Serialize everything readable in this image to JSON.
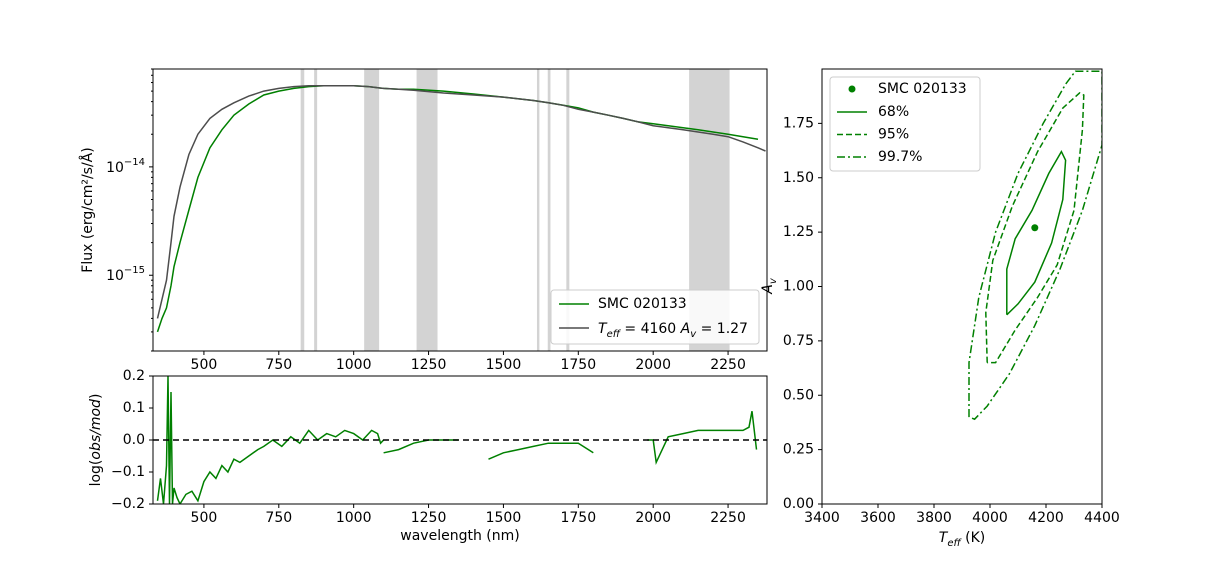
{
  "chart_data": [
    {
      "type": "line",
      "panel": "spectrum",
      "title": "",
      "xlabel": "",
      "ylabel": "Flux (erg/cm²/s/Å)",
      "xlim": [
        330,
        2380
      ],
      "ylim": [
        2e-16,
        8e-14
      ],
      "yscale": "log",
      "xticks": [
        500,
        750,
        1000,
        1250,
        1500,
        1750,
        2000,
        2250
      ],
      "yticks": [
        {
          "value": 1e-15,
          "base": "10",
          "exp": "−15"
        },
        {
          "value": 1e-14,
          "base": "10",
          "exp": "−14"
        }
      ],
      "grid": false,
      "legend_placement": "lower right",
      "masked_bands": [
        [
          823,
          835
        ],
        [
          868,
          878
        ],
        [
          1035,
          1085
        ],
        [
          1210,
          1280
        ],
        [
          1612,
          1620
        ],
        [
          1648,
          1657
        ],
        [
          1710,
          1720
        ],
        [
          2120,
          2255
        ]
      ],
      "series": [
        {
          "name": "SMC 020133",
          "color": "#008000",
          "x": [
            345,
            360,
            375,
            390,
            400,
            420,
            450,
            480,
            520,
            560,
            600,
            650,
            700,
            750,
            800,
            850,
            900,
            950,
            1000,
            1050,
            1100,
            1150,
            1200,
            1300,
            1400,
            1500,
            1600,
            1650,
            1700,
            1750,
            1800,
            1850,
            1900,
            1950,
            2000,
            2050,
            2100,
            2150,
            2200,
            2250,
            2300,
            2350
          ],
          "y": [
            3e-16,
            4e-16,
            5e-16,
            8e-16,
            1.2e-15,
            2e-15,
            4e-15,
            8e-15,
            1.5e-14,
            2.2e-14,
            3e-14,
            3.8e-14,
            4.6e-14,
            5e-14,
            5.3e-14,
            5.5e-14,
            5.6e-14,
            5.6e-14,
            5.6e-14,
            5.5e-14,
            5.3e-14,
            5.2e-14,
            5.2e-14,
            5e-14,
            4.7e-14,
            4.4e-14,
            4.1e-14,
            3.9e-14,
            3.7e-14,
            3.5e-14,
            3.2e-14,
            3e-14,
            2.8e-14,
            2.6e-14,
            2.5e-14,
            2.4e-14,
            2.3e-14,
            2.2e-14,
            2.1e-14,
            2e-14,
            1.9e-14,
            1.8e-14
          ]
        },
        {
          "name": "Teff = 4160 Av = 1.27",
          "color": "#4d4d4d",
          "x": [
            345,
            360,
            375,
            390,
            400,
            420,
            450,
            480,
            520,
            560,
            600,
            650,
            700,
            750,
            800,
            850,
            900,
            950,
            1000,
            1050,
            1100,
            1150,
            1200,
            1300,
            1400,
            1500,
            1600,
            1650,
            1700,
            1750,
            1800,
            1850,
            1900,
            1950,
            2000,
            2050,
            2100,
            2150,
            2200,
            2250,
            2300,
            2350,
            2375
          ],
          "y": [
            4e-16,
            6e-16,
            9e-16,
            2e-15,
            3.5e-15,
            6.5e-15,
            1.3e-14,
            2e-14,
            2.8e-14,
            3.4e-14,
            3.9e-14,
            4.5e-14,
            5e-14,
            5.3e-14,
            5.5e-14,
            5.6e-14,
            5.6e-14,
            5.6e-14,
            5.6e-14,
            5.5e-14,
            5.3e-14,
            5.2e-14,
            5.1e-14,
            4.8e-14,
            4.6e-14,
            4.4e-14,
            4.1e-14,
            3.9e-14,
            3.7e-14,
            3.4e-14,
            3.2e-14,
            3e-14,
            2.8e-14,
            2.6e-14,
            2.4e-14,
            2.3e-14,
            2.2e-14,
            2.1e-14,
            2e-14,
            1.9e-14,
            1.7e-14,
            1.5e-14,
            1.4e-14
          ]
        }
      ]
    },
    {
      "type": "line",
      "panel": "residuals",
      "title": "",
      "xlabel": "wavelength (nm)",
      "ylabel": "log(obs/mod)",
      "xlim": [
        330,
        2380
      ],
      "ylim": [
        -0.2,
        0.2
      ],
      "xticks": [
        500,
        750,
        1000,
        1250,
        1500,
        1750,
        2000,
        2250
      ],
      "yticks": [
        "−0.2",
        "−0.1",
        "0.0",
        "0.1",
        "0.2"
      ],
      "zero_line": 0.0,
      "grid": false,
      "series": [
        {
          "name": "",
          "color": "#008000",
          "segments": [
            {
              "x": [
                345,
                355,
                365,
                375,
                380,
                385,
                390,
                395,
                400,
                410,
                420,
                440,
                460,
                480,
                500,
                520,
                540,
                560,
                580,
                600,
                620,
                650,
                680,
                700,
                730,
                760,
                790,
                820,
                850,
                880,
                910,
                940,
                970,
                1000,
                1030,
                1060,
                1080,
                1090,
                1100
              ],
              "y": [
                -0.19,
                -0.12,
                -0.2,
                -0.08,
                0.2,
                -0.2,
                0.15,
                -0.2,
                -0.15,
                -0.18,
                -0.2,
                -0.17,
                -0.16,
                -0.19,
                -0.13,
                -0.1,
                -0.12,
                -0.08,
                -0.1,
                -0.06,
                -0.07,
                -0.05,
                -0.03,
                -0.02,
                0.0,
                -0.02,
                0.01,
                -0.01,
                0.03,
                0.0,
                0.02,
                0.01,
                0.03,
                0.02,
                0.0,
                0.03,
                0.02,
                -0.01,
                0.0
              ]
            },
            {
              "x": [
                1100,
                1150,
                1200,
                1250,
                1300,
                1350
              ],
              "y": [
                -0.04,
                -0.03,
                -0.01,
                0.0,
                0.0,
                0.0
              ]
            },
            {
              "x": [
                1450,
                1500,
                1550,
                1600,
                1650,
                1700,
                1750,
                1800
              ],
              "y": [
                -0.06,
                -0.04,
                -0.03,
                -0.02,
                -0.01,
                -0.01,
                -0.01,
                -0.04
              ]
            },
            {
              "x": [
                1980,
                2000,
                2010,
                2050,
                2100,
                2150,
                2200,
                2250,
                2300,
                2320,
                2330,
                2345
              ],
              "y": [
                0.0,
                0.0,
                -0.07,
                0.01,
                0.02,
                0.03,
                0.03,
                0.03,
                0.03,
                0.04,
                0.09,
                -0.03
              ]
            }
          ]
        }
      ]
    },
    {
      "type": "scatter",
      "panel": "contours",
      "title": "",
      "xlabel": "Teff (K)",
      "ylabel": "Av",
      "xlim": [
        3400,
        4400
      ],
      "ylim": [
        0.0,
        2.0
      ],
      "xticks": [
        3400,
        3600,
        3800,
        4000,
        4200,
        4400
      ],
      "yticks": [
        "0.00",
        "0.25",
        "0.50",
        "0.75",
        "1.00",
        "1.25",
        "1.50",
        "1.75"
      ],
      "grid": false,
      "legend_placement": "upper left",
      "best_fit": {
        "name": "SMC 020133",
        "teff": 4160,
        "av": 1.27
      },
      "series": [
        {
          "name": "68%",
          "style": "solid",
          "x": [
            4060,
            4060,
            4090,
            4150,
            4210,
            4255,
            4270,
            4260,
            4220,
            4160,
            4100,
            4060
          ],
          "y": [
            0.87,
            1.08,
            1.22,
            1.35,
            1.52,
            1.62,
            1.58,
            1.4,
            1.2,
            1.02,
            0.92,
            0.87
          ]
        },
        {
          "name": "95%",
          "style": "dashed",
          "x": [
            3990,
            3985,
            4010,
            4080,
            4170,
            4260,
            4320,
            4335,
            4330,
            4300,
            4240,
            4170,
            4090,
            4020,
            3990
          ],
          "y": [
            0.65,
            0.88,
            1.12,
            1.37,
            1.62,
            1.82,
            1.89,
            1.88,
            1.72,
            1.35,
            1.1,
            0.95,
            0.8,
            0.65,
            0.65
          ]
        },
        {
          "name": "99.7%",
          "style": "dashdot",
          "x": [
            3925,
            3925,
            3960,
            4020,
            4100,
            4190,
            4270,
            4305,
            4400,
            4400,
            4330,
            4250,
            4160,
            4070,
            3990,
            3945,
            3925
          ],
          "y": [
            0.4,
            0.65,
            0.95,
            1.25,
            1.52,
            1.75,
            1.93,
            1.99,
            1.99,
            1.65,
            1.35,
            1.08,
            0.82,
            0.6,
            0.45,
            0.39,
            0.4
          ]
        }
      ]
    }
  ]
}
